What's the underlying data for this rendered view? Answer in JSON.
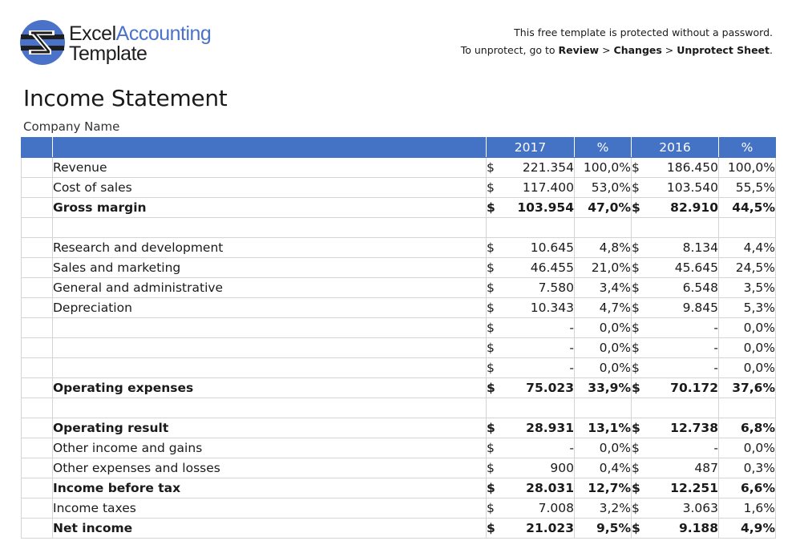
{
  "logo": {
    "line1_part1": "Excel",
    "line1_part2": "Accounting",
    "line2": "Template",
    "brand_color": "#4a72c8",
    "dark_color": "#1e1e1e"
  },
  "notice": {
    "line1": "This free template is protected without a password.",
    "line2_prefix": "To unprotect, go to ",
    "review": "Review",
    "sep1": " > ",
    "changes": "Changes",
    "sep2": " > ",
    "unprotect": "Unprotect Sheet",
    "end": "."
  },
  "title": "Income Statement",
  "company": "Company Name",
  "header": {
    "col1": "2017",
    "col2": "%",
    "col3": "2016",
    "col4": "%",
    "color": "#4472c4"
  },
  "rows": [
    {
      "label": "Revenue",
      "bold": false,
      "d1": "$",
      "v1": "221.354",
      "p1": "100,0%",
      "d2": "$",
      "v2": "186.450",
      "p2": "100,0%"
    },
    {
      "label": "Cost of sales",
      "bold": false,
      "d1": "$",
      "v1": "117.400",
      "p1": "53,0%",
      "d2": "$",
      "v2": "103.540",
      "p2": "55,5%"
    },
    {
      "label": "Gross margin",
      "bold": true,
      "d1": "$",
      "v1": "103.954",
      "p1": "47,0%",
      "d2": "$",
      "v2": "82.910",
      "p2": "44,5%"
    },
    {
      "label": "",
      "bold": false,
      "d1": "",
      "v1": "",
      "p1": "",
      "d2": "",
      "v2": "",
      "p2": ""
    },
    {
      "label": "Research and development",
      "bold": false,
      "d1": "$",
      "v1": "10.645",
      "p1": "4,8%",
      "d2": "$",
      "v2": "8.134",
      "p2": "4,4%"
    },
    {
      "label": "Sales and marketing",
      "bold": false,
      "d1": "$",
      "v1": "46.455",
      "p1": "21,0%",
      "d2": "$",
      "v2": "45.645",
      "p2": "24,5%"
    },
    {
      "label": "General and administrative",
      "bold": false,
      "d1": "$",
      "v1": "7.580",
      "p1": "3,4%",
      "d2": "$",
      "v2": "6.548",
      "p2": "3,5%"
    },
    {
      "label": "Depreciation",
      "bold": false,
      "d1": "$",
      "v1": "10.343",
      "p1": "4,7%",
      "d2": "$",
      "v2": "9.845",
      "p2": "5,3%"
    },
    {
      "label": "",
      "bold": false,
      "d1": "$",
      "v1": "-",
      "p1": "0,0%",
      "d2": "$",
      "v2": "-",
      "p2": "0,0%"
    },
    {
      "label": "",
      "bold": false,
      "d1": "$",
      "v1": "-",
      "p1": "0,0%",
      "d2": "$",
      "v2": "-",
      "p2": "0,0%"
    },
    {
      "label": "",
      "bold": false,
      "d1": "$",
      "v1": "-",
      "p1": "0,0%",
      "d2": "$",
      "v2": "-",
      "p2": "0,0%"
    },
    {
      "label": "Operating expenses",
      "bold": true,
      "d1": "$",
      "v1": "75.023",
      "p1": "33,9%",
      "d2": "$",
      "v2": "70.172",
      "p2": "37,6%"
    },
    {
      "label": "",
      "bold": false,
      "d1": "",
      "v1": "",
      "p1": "",
      "d2": "",
      "v2": "",
      "p2": ""
    },
    {
      "label": "Operating result",
      "bold": true,
      "d1": "$",
      "v1": "28.931",
      "p1": "13,1%",
      "d2": "$",
      "v2": "12.738",
      "p2": "6,8%"
    },
    {
      "label": "Other income and gains",
      "bold": false,
      "d1": "$",
      "v1": "-",
      "p1": "0,0%",
      "d2": "$",
      "v2": "-",
      "p2": "0,0%"
    },
    {
      "label": "Other expenses and losses",
      "bold": false,
      "d1": "$",
      "v1": "900",
      "p1": "0,4%",
      "d2": "$",
      "v2": "487",
      "p2": "0,3%"
    },
    {
      "label": "Income before tax",
      "bold": true,
      "d1": "$",
      "v1": "28.031",
      "p1": "12,7%",
      "d2": "$",
      "v2": "12.251",
      "p2": "6,6%"
    },
    {
      "label": "Income taxes",
      "bold": false,
      "d1": "$",
      "v1": "7.008",
      "p1": "3,2%",
      "d2": "$",
      "v2": "3.063",
      "p2": "1,6%"
    },
    {
      "label": "Net income",
      "bold": true,
      "d1": "$",
      "v1": "21.023",
      "p1": "9,5%",
      "d2": "$",
      "v2": "9.188",
      "p2": "4,9%"
    }
  ]
}
